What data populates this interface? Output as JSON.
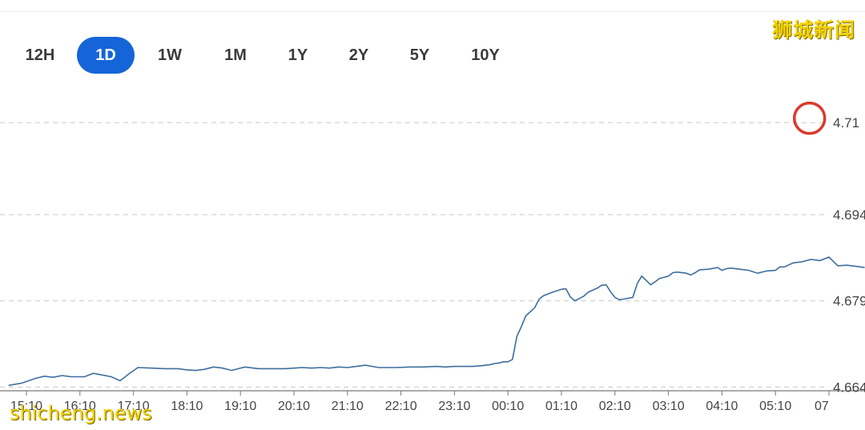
{
  "watermarks": {
    "top": "狮城新闻",
    "bottom": "shicheng.news"
  },
  "range_tabs": [
    {
      "label": "12H",
      "active": false
    },
    {
      "label": "1D",
      "active": true
    },
    {
      "label": "1W",
      "active": false
    },
    {
      "label": "1M",
      "active": false
    },
    {
      "label": "1Y",
      "active": false
    },
    {
      "label": "2Y",
      "active": false
    },
    {
      "label": "5Y",
      "active": false
    },
    {
      "label": "10Y",
      "active": false
    }
  ],
  "colors": {
    "line": "#3d6e9e",
    "active_tab": "#1565d8",
    "highlight_circle": "#d93a2b",
    "watermark": "#f3d200",
    "grid": "#c8c8c8"
  },
  "chart_data": {
    "type": "line",
    "title": "",
    "xlabel": "",
    "ylabel": "",
    "x_tick_labels": [
      "15:10",
      "16:10",
      "17:10",
      "18:10",
      "19:10",
      "20:10",
      "21:10",
      "22:10",
      "23:10",
      "00:10",
      "01:10",
      "02:10",
      "03:10",
      "04:10",
      "05:10",
      "07"
    ],
    "y_tick_labels": [
      "4.71",
      "4.694",
      "4.679",
      "4.664"
    ],
    "ylim": [
      4.6635,
      4.7128
    ],
    "grid": "horizontal dashed",
    "annotation": {
      "type": "circle",
      "x": "05:50",
      "y": 4.7102
    },
    "series": [
      {
        "x": [
          "14:50",
          "15:05",
          "15:20",
          "15:30",
          "15:40",
          "15:50",
          "16:00",
          "16:15",
          "16:25",
          "16:35",
          "16:45",
          "16:55",
          "17:05",
          "17:15",
          "17:30",
          "17:45",
          "18:00",
          "18:10",
          "18:20",
          "18:30",
          "18:35",
          "18:40",
          "18:50",
          "19:00",
          "19:15",
          "19:30",
          "19:45",
          "20:00",
          "20:10",
          "20:20",
          "20:30",
          "20:40",
          "20:50",
          "21:00",
          "21:10",
          "21:20",
          "21:30",
          "21:45",
          "21:50",
          "21:55",
          "22:05",
          "22:20",
          "22:35",
          "22:50",
          "23:00",
          "23:10",
          "23:20",
          "23:30",
          "23:40",
          "23:45",
          "23:50",
          "23:55",
          "00:00",
          "00:05",
          "00:10",
          "00:15",
          "00:20",
          "00:25",
          "00:30",
          "00:40",
          "00:45",
          "00:50",
          "01:00",
          "01:10",
          "01:15",
          "01:20",
          "01:25",
          "01:35",
          "01:40",
          "01:50",
          "01:55",
          "02:00",
          "02:05",
          "02:10",
          "02:15",
          "02:20",
          "02:30",
          "02:35",
          "02:40",
          "02:50",
          "02:55",
          "03:00",
          "03:10",
          "03:15",
          "03:20",
          "03:30",
          "03:35",
          "03:40",
          "03:45",
          "03:55",
          "04:05",
          "04:10",
          "04:15",
          "04:20",
          "04:30",
          "04:40",
          "04:50",
          "05:00",
          "05:10",
          "05:15",
          "05:20",
          "05:30",
          "05:40",
          "05:50",
          "06:00",
          "06:10",
          "06:20",
          "06:30",
          "06:40",
          "06:50"
        ],
        "values": [
          4.6643,
          4.6647,
          4.6655,
          4.6659,
          4.6657,
          4.666,
          4.6658,
          4.6658,
          4.6664,
          4.6661,
          4.6658,
          4.6651,
          4.6663,
          4.6674,
          4.6673,
          4.6672,
          4.6672,
          4.667,
          4.6669,
          4.6671,
          4.6673,
          4.6675,
          4.6673,
          4.6669,
          4.6675,
          4.6672,
          4.6672,
          4.6672,
          4.6673,
          4.6674,
          4.6673,
          4.6674,
          4.6673,
          4.6675,
          4.6674,
          4.6676,
          4.6678,
          4.6674,
          4.6674,
          4.6674,
          4.6674,
          4.6675,
          4.6675,
          4.6676,
          4.6675,
          4.6676,
          4.6676,
          4.6676,
          4.6677,
          4.6678,
          4.6679,
          4.6681,
          4.6682,
          4.6684,
          4.6684,
          4.6688,
          4.6728,
          4.6745,
          4.6764,
          4.6778,
          4.6793,
          4.6799,
          4.6805,
          4.681,
          4.6811,
          4.6797,
          4.679,
          4.6798,
          4.6805,
          4.6812,
          4.6817,
          4.6818,
          4.6806,
          4.6796,
          4.6792,
          4.6793,
          4.6796,
          4.682,
          4.6833,
          4.6818,
          4.6823,
          4.6829,
          4.6833,
          4.6839,
          4.684,
          4.6838,
          4.6835,
          4.6839,
          4.6844,
          4.6845,
          4.6848,
          4.6843,
          4.6846,
          4.6847,
          4.6845,
          4.6843,
          4.6838,
          4.6842,
          4.6843,
          4.6849,
          4.6849,
          4.6856,
          4.6858,
          4.6862,
          4.686,
          4.6866,
          4.6851,
          4.6852,
          4.685,
          4.6848
        ]
      }
    ]
  }
}
